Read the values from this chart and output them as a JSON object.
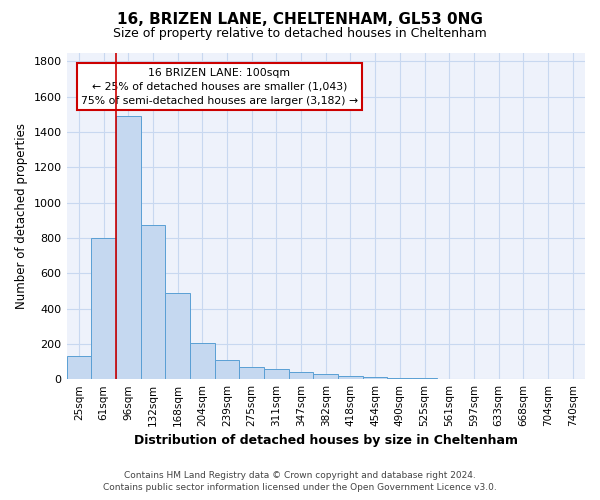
{
  "title1": "16, BRIZEN LANE, CHELTENHAM, GL53 0NG",
  "title2": "Size of property relative to detached houses in Cheltenham",
  "xlabel": "Distribution of detached houses by size in Cheltenham",
  "ylabel": "Number of detached properties",
  "categories": [
    "25sqm",
    "61sqm",
    "96sqm",
    "132sqm",
    "168sqm",
    "204sqm",
    "239sqm",
    "275sqm",
    "311sqm",
    "347sqm",
    "382sqm",
    "418sqm",
    "454sqm",
    "490sqm",
    "525sqm",
    "561sqm",
    "597sqm",
    "633sqm",
    "668sqm",
    "704sqm",
    "740sqm"
  ],
  "values": [
    130,
    800,
    1490,
    875,
    490,
    205,
    110,
    68,
    55,
    40,
    30,
    20,
    10,
    6,
    4,
    3,
    2,
    1,
    1,
    0,
    0
  ],
  "bar_color": "#c5d8f0",
  "bar_edge_color": "#5a9fd4",
  "red_line_index": 2,
  "annotation_title": "16 BRIZEN LANE: 100sqm",
  "annotation_line1": "← 25% of detached houses are smaller (1,043)",
  "annotation_line2": "75% of semi-detached houses are larger (3,182) →",
  "annotation_box_color": "#ffffff",
  "annotation_box_edge": "#cc0000",
  "footer1": "Contains HM Land Registry data © Crown copyright and database right 2024.",
  "footer2": "Contains public sector information licensed under the Open Government Licence v3.0.",
  "ylim": [
    0,
    1850
  ],
  "grid_color": "#c8d8f0",
  "background_color": "#ffffff",
  "plot_bg_color": "#eef2fb"
}
